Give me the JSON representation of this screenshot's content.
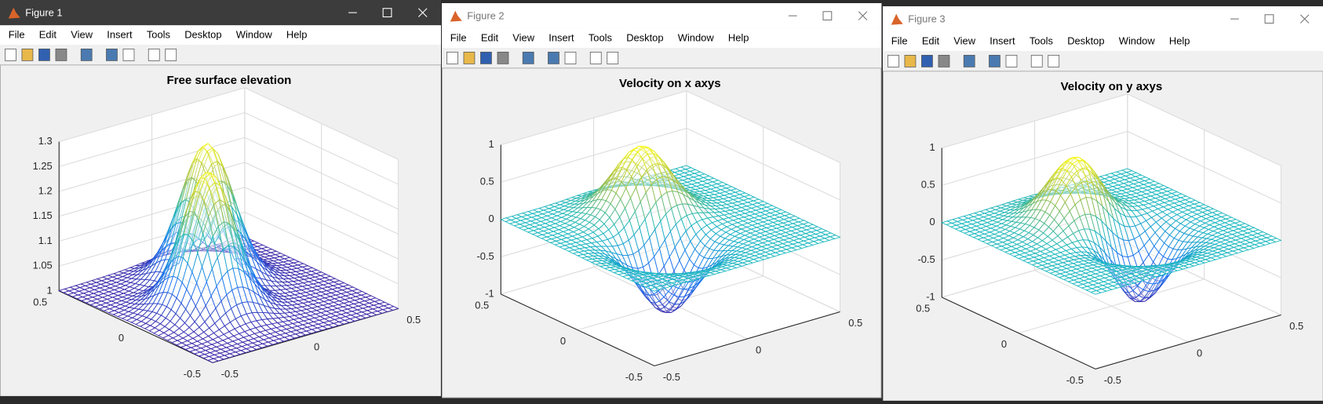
{
  "windows": [
    {
      "title": "Figure 1",
      "menu": [
        "File",
        "Edit",
        "View",
        "Insert",
        "Tools",
        "Desktop",
        "Window",
        "Help"
      ],
      "axes": {
        "title": "Free surface elevation",
        "zticks": [
          1,
          1.05,
          1.1,
          1.15,
          1.2,
          1.25,
          1.3
        ],
        "xticks": [
          0.5,
          0,
          -0.5
        ],
        "yticks": [
          -0.5,
          0,
          0.5
        ]
      }
    },
    {
      "title": "Figure 2",
      "menu": [
        "File",
        "Edit",
        "View",
        "Insert",
        "Tools",
        "Desktop",
        "Window",
        "Help"
      ],
      "axes": {
        "title": "Velocity on x axys",
        "zticks": [
          -1,
          -0.5,
          0,
          0.5,
          1
        ],
        "xticks": [
          0.5,
          0,
          -0.5
        ],
        "yticks": [
          -0.5,
          0,
          0.5
        ]
      }
    },
    {
      "title": "Figure 3",
      "menu": [
        "File",
        "Edit",
        "View",
        "Insert",
        "Tools",
        "Desktop",
        "Window",
        "Help"
      ],
      "axes": {
        "title": "Velocity on y axys",
        "zticks": [
          -1,
          -0.5,
          0,
          0.5,
          1
        ],
        "xticks": [
          0.5,
          0,
          -0.5
        ],
        "yticks": [
          -0.5,
          0,
          0.5
        ]
      }
    }
  ]
}
